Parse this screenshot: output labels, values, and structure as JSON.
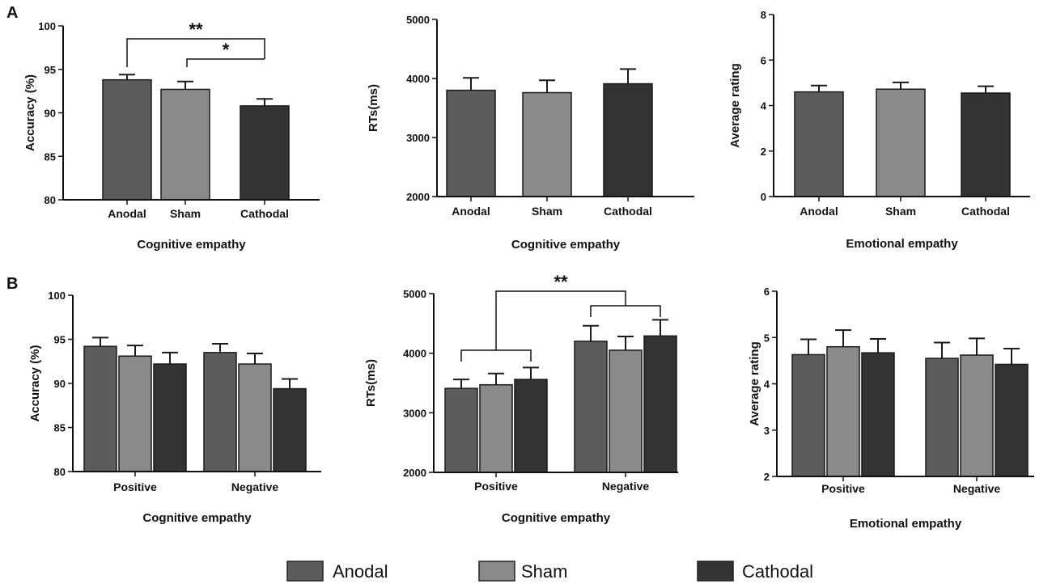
{
  "panel_labels": [
    "A",
    "B"
  ],
  "colors": {
    "Anodal": "#5c5c5c",
    "Sham": "#8a8a8a",
    "Cathodal": "#333333"
  },
  "legend": [
    {
      "name": "Anodal",
      "color": "#5c5c5c"
    },
    {
      "name": "Sham",
      "color": "#8a8a8a"
    },
    {
      "name": "Cathodal",
      "color": "#333333"
    }
  ],
  "chart_data": [
    {
      "id": "A1",
      "type": "bar",
      "categories": [
        "Anodal",
        "Sham",
        "Cathodal"
      ],
      "values": [
        93.8,
        92.7,
        90.8
      ],
      "errors": [
        0.6,
        0.9,
        0.8
      ],
      "ylabel": "Accuracy (%)",
      "xlabel": "Cognitive empathy",
      "ylim": [
        80,
        100
      ],
      "yticks": [
        80,
        85,
        90,
        95,
        100
      ],
      "significance": [
        {
          "from": 0,
          "to": 2,
          "label": "**"
        },
        {
          "from": 1,
          "to": 2,
          "label": "*"
        }
      ]
    },
    {
      "id": "A2",
      "type": "bar",
      "categories": [
        "Anodal",
        "Sham",
        "Cathodal"
      ],
      "values": [
        3800,
        3760,
        3910
      ],
      "errors": [
        210,
        210,
        250
      ],
      "ylabel": "RTs(ms)",
      "xlabel": "Cognitive empathy",
      "ylim": [
        2000,
        5000
      ],
      "yticks": [
        2000,
        3000,
        4000,
        5000
      ],
      "significance": []
    },
    {
      "id": "A3",
      "type": "bar",
      "categories": [
        "Anodal",
        "Sham",
        "Cathodal"
      ],
      "values": [
        4.6,
        4.72,
        4.55
      ],
      "errors": [
        0.28,
        0.3,
        0.3
      ],
      "ylabel": "Average rating",
      "xlabel": "Emotional empathy",
      "ylim": [
        0,
        8
      ],
      "yticks": [
        0,
        2,
        4,
        6,
        8
      ],
      "significance": []
    },
    {
      "id": "B1",
      "type": "bar",
      "categories": [
        "Positive",
        "Negative"
      ],
      "series": [
        {
          "name": "Anodal",
          "values": [
            94.2,
            93.5
          ],
          "errors": [
            1.0,
            1.0
          ]
        },
        {
          "name": "Sham",
          "values": [
            93.1,
            92.2
          ],
          "errors": [
            1.2,
            1.2
          ]
        },
        {
          "name": "Cathodal",
          "values": [
            92.2,
            89.4
          ],
          "errors": [
            1.3,
            1.1
          ]
        }
      ],
      "ylabel": "Accuracy (%)",
      "xlabel": "Cognitive empathy",
      "ylim": [
        80,
        100
      ],
      "yticks": [
        80,
        85,
        90,
        95,
        100
      ],
      "significance": []
    },
    {
      "id": "B2",
      "type": "bar",
      "categories": [
        "Positive",
        "Negative"
      ],
      "series": [
        {
          "name": "Anodal",
          "values": [
            3410,
            4200
          ],
          "errors": [
            150,
            260
          ]
        },
        {
          "name": "Sham",
          "values": [
            3470,
            4050
          ],
          "errors": [
            190,
            230
          ]
        },
        {
          "name": "Cathodal",
          "values": [
            3560,
            4290
          ],
          "errors": [
            200,
            270
          ]
        }
      ],
      "ylabel": "RTs(ms)",
      "xlabel": "Cognitive empathy",
      "ylim": [
        2000,
        5000
      ],
      "yticks": [
        2000,
        3000,
        4000,
        5000
      ],
      "significance": [
        {
          "between_groups": [
            0,
            1
          ],
          "label": "**"
        }
      ]
    },
    {
      "id": "B3",
      "type": "bar",
      "categories": [
        "Positive",
        "Negative"
      ],
      "series": [
        {
          "name": "Anodal",
          "values": [
            4.63,
            4.55
          ],
          "errors": [
            0.33,
            0.34
          ]
        },
        {
          "name": "Sham",
          "values": [
            4.8,
            4.62
          ],
          "errors": [
            0.36,
            0.36
          ]
        },
        {
          "name": "Cathodal",
          "values": [
            4.67,
            4.42
          ],
          "errors": [
            0.3,
            0.34
          ]
        }
      ],
      "ylabel": "Average rating",
      "xlabel": "Emotional empathy",
      "ylim": [
        2,
        6
      ],
      "yticks": [
        2,
        3,
        4,
        5,
        6
      ],
      "significance": []
    }
  ]
}
